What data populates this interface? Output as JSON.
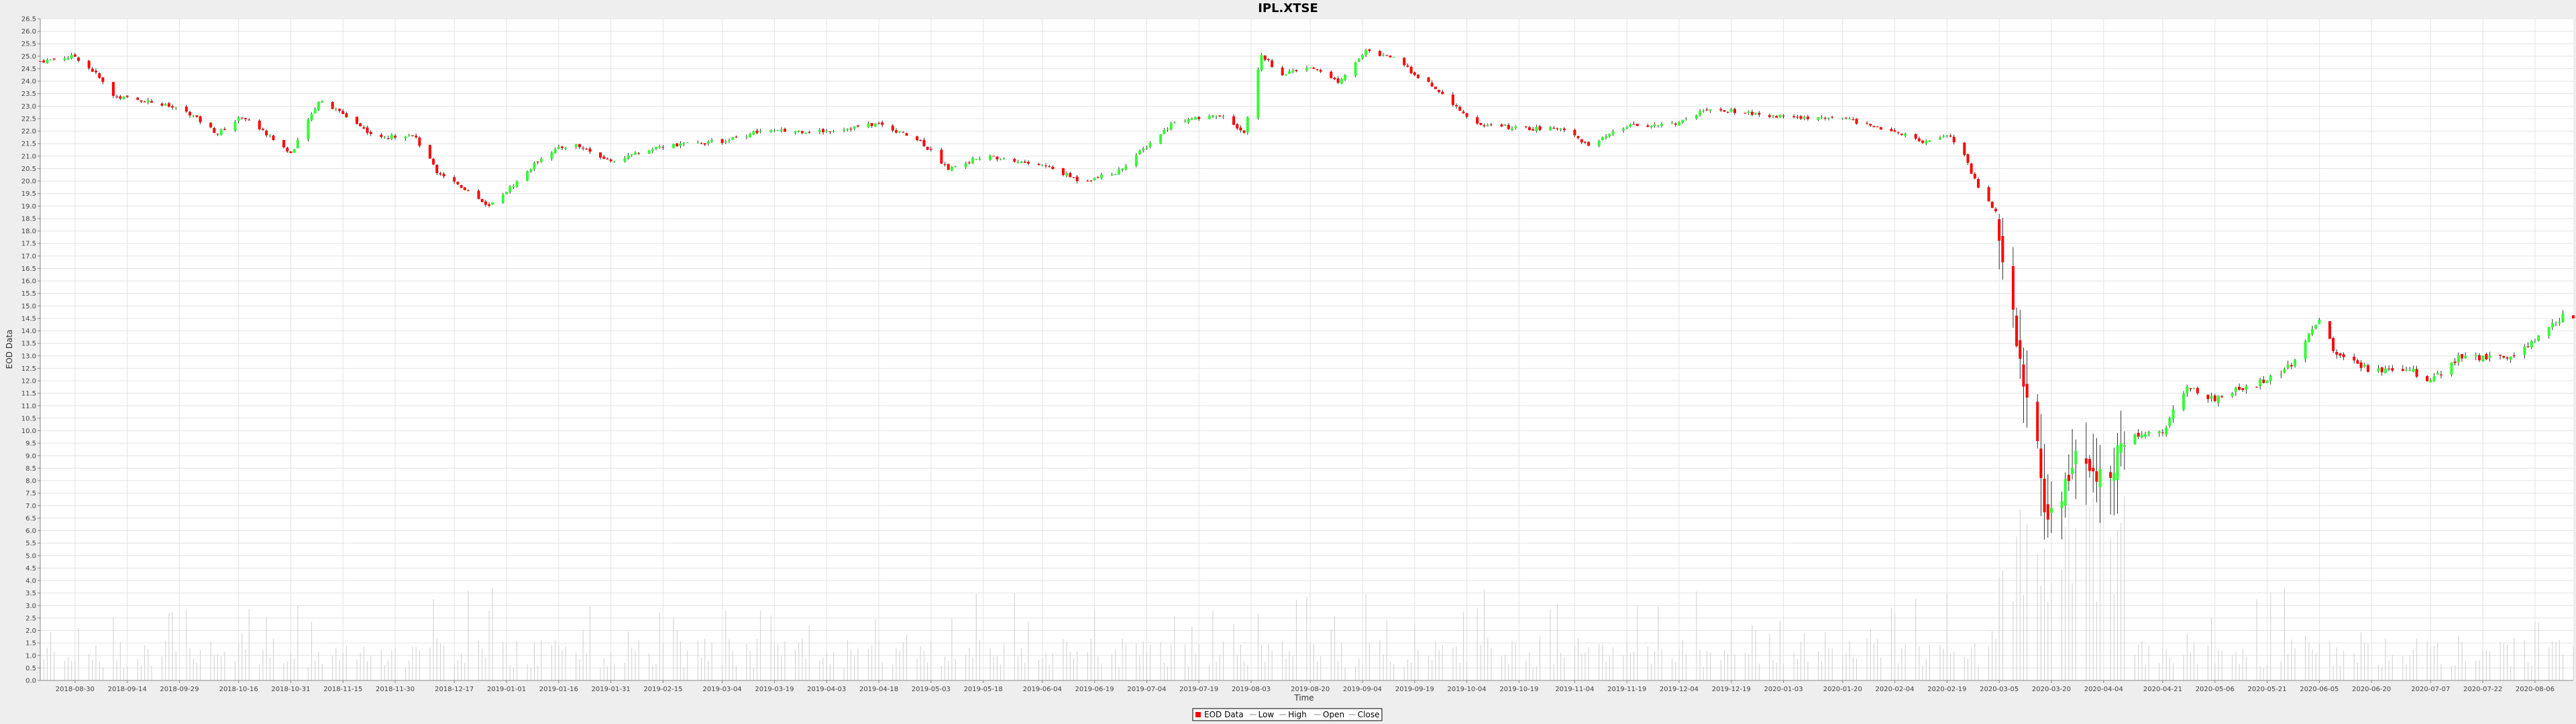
{
  "chart_data": {
    "type": "candlestick",
    "title": "IPL.XTSE",
    "xlabel": "Time",
    "ylabel": "EOD Data",
    "ylim": [
      0.0,
      26.5
    ],
    "ytick_step": 0.5,
    "grid": true,
    "legend_position": "bottom-center",
    "legend": [
      "EOD Data",
      "Low",
      "High",
      "Open",
      "Close"
    ],
    "colors": {
      "up": "#33ff33",
      "down": "#ff0000",
      "wick": "#000000",
      "volume": "#cfcfcf",
      "grid": "#e4e4e4",
      "plot_bg": "#ffffff",
      "page_bg": "#eeeeee",
      "legend_marker": "#ff0000"
    },
    "x_ticks": [
      "2018-08-30",
      "2018-09-14",
      "2018-09-29",
      "2018-10-16",
      "2018-10-31",
      "2018-11-15",
      "2018-11-30",
      "2018-12-17",
      "2019-01-01",
      "2019-01-16",
      "2019-01-31",
      "2019-02-15",
      "2019-03-04",
      "2019-03-19",
      "2019-04-03",
      "2019-04-18",
      "2019-05-03",
      "2019-05-18",
      "2019-06-04",
      "2019-06-19",
      "2019-07-04",
      "2019-07-19",
      "2019-08-03",
      "2019-08-20",
      "2019-09-04",
      "2019-09-19",
      "2019-10-04",
      "2019-10-19",
      "2019-11-04",
      "2019-11-19",
      "2019-12-04",
      "2019-12-19",
      "2020-01-03",
      "2020-01-20",
      "2020-02-04",
      "2020-02-19",
      "2020-03-05",
      "2020-03-20",
      "2020-04-04",
      "2020-04-21",
      "2020-05-06",
      "2020-05-21",
      "2020-06-05",
      "2020-06-20",
      "2020-07-07",
      "2020-07-22",
      "2020-08-06"
    ],
    "price_path": [
      [
        "2018-08-20",
        24.8
      ],
      [
        "2018-08-30",
        25.0
      ],
      [
        "2018-09-05",
        24.3
      ],
      [
        "2018-09-10",
        23.4
      ],
      [
        "2018-09-20",
        23.2
      ],
      [
        "2018-10-01",
        22.8
      ],
      [
        "2018-10-10",
        21.9
      ],
      [
        "2018-10-17",
        22.6
      ],
      [
        "2018-10-25",
        21.8
      ],
      [
        "2018-10-31",
        21.1
      ],
      [
        "2018-11-08",
        23.2
      ],
      [
        "2018-11-15",
        22.7
      ],
      [
        "2018-11-25",
        21.7
      ],
      [
        "2018-12-05",
        21.9
      ],
      [
        "2018-12-12",
        20.4
      ],
      [
        "2018-12-20",
        19.7
      ],
      [
        "2018-12-27",
        19.0
      ],
      [
        "2019-01-05",
        20.1
      ],
      [
        "2019-01-12",
        21.1
      ],
      [
        "2019-01-20",
        21.5
      ],
      [
        "2019-01-31",
        20.8
      ],
      [
        "2019-02-15",
        21.4
      ],
      [
        "2019-03-04",
        21.6
      ],
      [
        "2019-03-15",
        22.0
      ],
      [
        "2019-04-03",
        22.0
      ],
      [
        "2019-04-18",
        22.3
      ],
      [
        "2019-04-30",
        21.6
      ],
      [
        "2019-05-08",
        20.5
      ],
      [
        "2019-05-18",
        21.0
      ],
      [
        "2019-06-05",
        20.6
      ],
      [
        "2019-06-15",
        20.0
      ],
      [
        "2019-06-25",
        20.3
      ],
      [
        "2019-07-04",
        21.4
      ],
      [
        "2019-07-12",
        22.4
      ],
      [
        "2019-07-25",
        22.6
      ],
      [
        "2019-08-01",
        22.0
      ],
      [
        "2019-08-06",
        25.0
      ],
      [
        "2019-08-12",
        24.3
      ],
      [
        "2019-08-20",
        24.6
      ],
      [
        "2019-08-28",
        24.0
      ],
      [
        "2019-09-05",
        25.2
      ],
      [
        "2019-09-12",
        25.0
      ],
      [
        "2019-09-19",
        24.3
      ],
      [
        "2019-09-28",
        23.4
      ],
      [
        "2019-10-06",
        22.3
      ],
      [
        "2019-10-19",
        22.1
      ],
      [
        "2019-11-01",
        22.1
      ],
      [
        "2019-11-08",
        21.4
      ],
      [
        "2019-11-19",
        22.2
      ],
      [
        "2019-12-04",
        22.3
      ],
      [
        "2019-12-10",
        22.8
      ],
      [
        "2019-12-19",
        22.8
      ],
      [
        "2019-12-31",
        22.6
      ],
      [
        "2020-01-20",
        22.5
      ],
      [
        "2020-02-04",
        22.0
      ],
      [
        "2020-02-12",
        21.6
      ],
      [
        "2020-02-19",
        21.9
      ],
      [
        "2020-02-24",
        21.0
      ],
      [
        "2020-02-28",
        19.7
      ],
      [
        "2020-03-04",
        18.8
      ],
      [
        "2020-03-09",
        14.2
      ],
      [
        "2020-03-12",
        11.5
      ],
      [
        "2020-03-16",
        9.5
      ],
      [
        "2020-03-18",
        6.4
      ],
      [
        "2020-03-23",
        7.2
      ],
      [
        "2020-03-27",
        8.7
      ],
      [
        "2020-04-01",
        7.7
      ],
      [
        "2020-04-06",
        8.8
      ],
      [
        "2020-04-13",
        9.8
      ],
      [
        "2020-04-21",
        10.0
      ],
      [
        "2020-04-28",
        11.8
      ],
      [
        "2020-05-06",
        11.2
      ],
      [
        "2020-05-13",
        11.7
      ],
      [
        "2020-05-21",
        12.0
      ],
      [
        "2020-05-28",
        12.6
      ],
      [
        "2020-06-05",
        14.5
      ],
      [
        "2020-06-10",
        13.0
      ],
      [
        "2020-06-20",
        12.4
      ],
      [
        "2020-06-30",
        12.5
      ],
      [
        "2020-07-07",
        12.0
      ],
      [
        "2020-07-15",
        12.9
      ],
      [
        "2020-07-31",
        12.9
      ],
      [
        "2020-08-06",
        13.6
      ],
      [
        "2020-08-14",
        14.6
      ]
    ]
  }
}
